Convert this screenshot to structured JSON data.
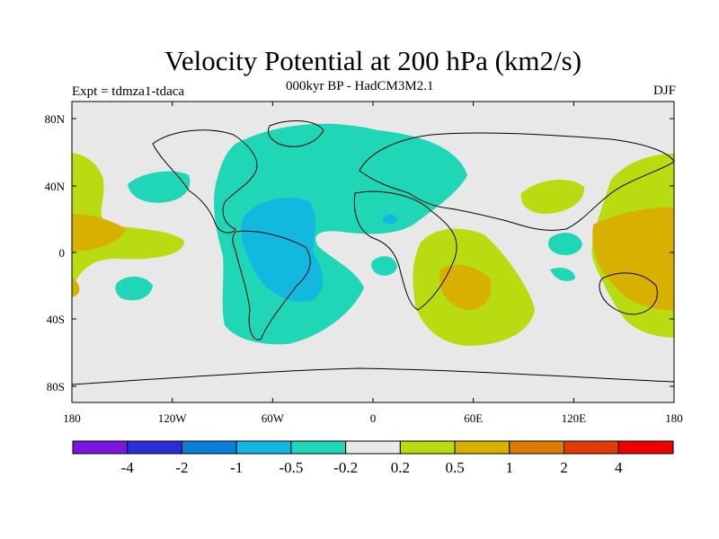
{
  "title": "Velocity Potential at 200 hPa (km2/s)",
  "subtitle": "000kyr BP - HadCM3M2.1",
  "experiment": "Expt = tdmza1-tdaca",
  "season": "DJF",
  "map": {
    "lat_ticks": [
      "80N",
      "40N",
      "0",
      "40S",
      "80S"
    ],
    "lon_ticks": [
      "180",
      "120W",
      "60W",
      "0",
      "60E",
      "120E",
      "180"
    ]
  },
  "colorbar": {
    "labels": [
      "-4",
      "-2",
      "-1",
      "-0.5",
      "-0.2",
      "0.2",
      "0.5",
      "1",
      "2",
      "4"
    ],
    "colors": [
      "#7a16e0",
      "#2a2ed8",
      "#0a7fd8",
      "#12b8e0",
      "#1fd6b6",
      "#e8e8e8",
      "#b8dc10",
      "#d8b000",
      "#de7a00",
      "#e03c08",
      "#ee0000"
    ]
  },
  "fills": {
    "background": "#e8e8e8",
    "neg_weak": "#1fd6b6",
    "neg_mid": "#12b8e0",
    "pos_weak": "#b8dc10",
    "pos_mid": "#d8b000"
  }
}
